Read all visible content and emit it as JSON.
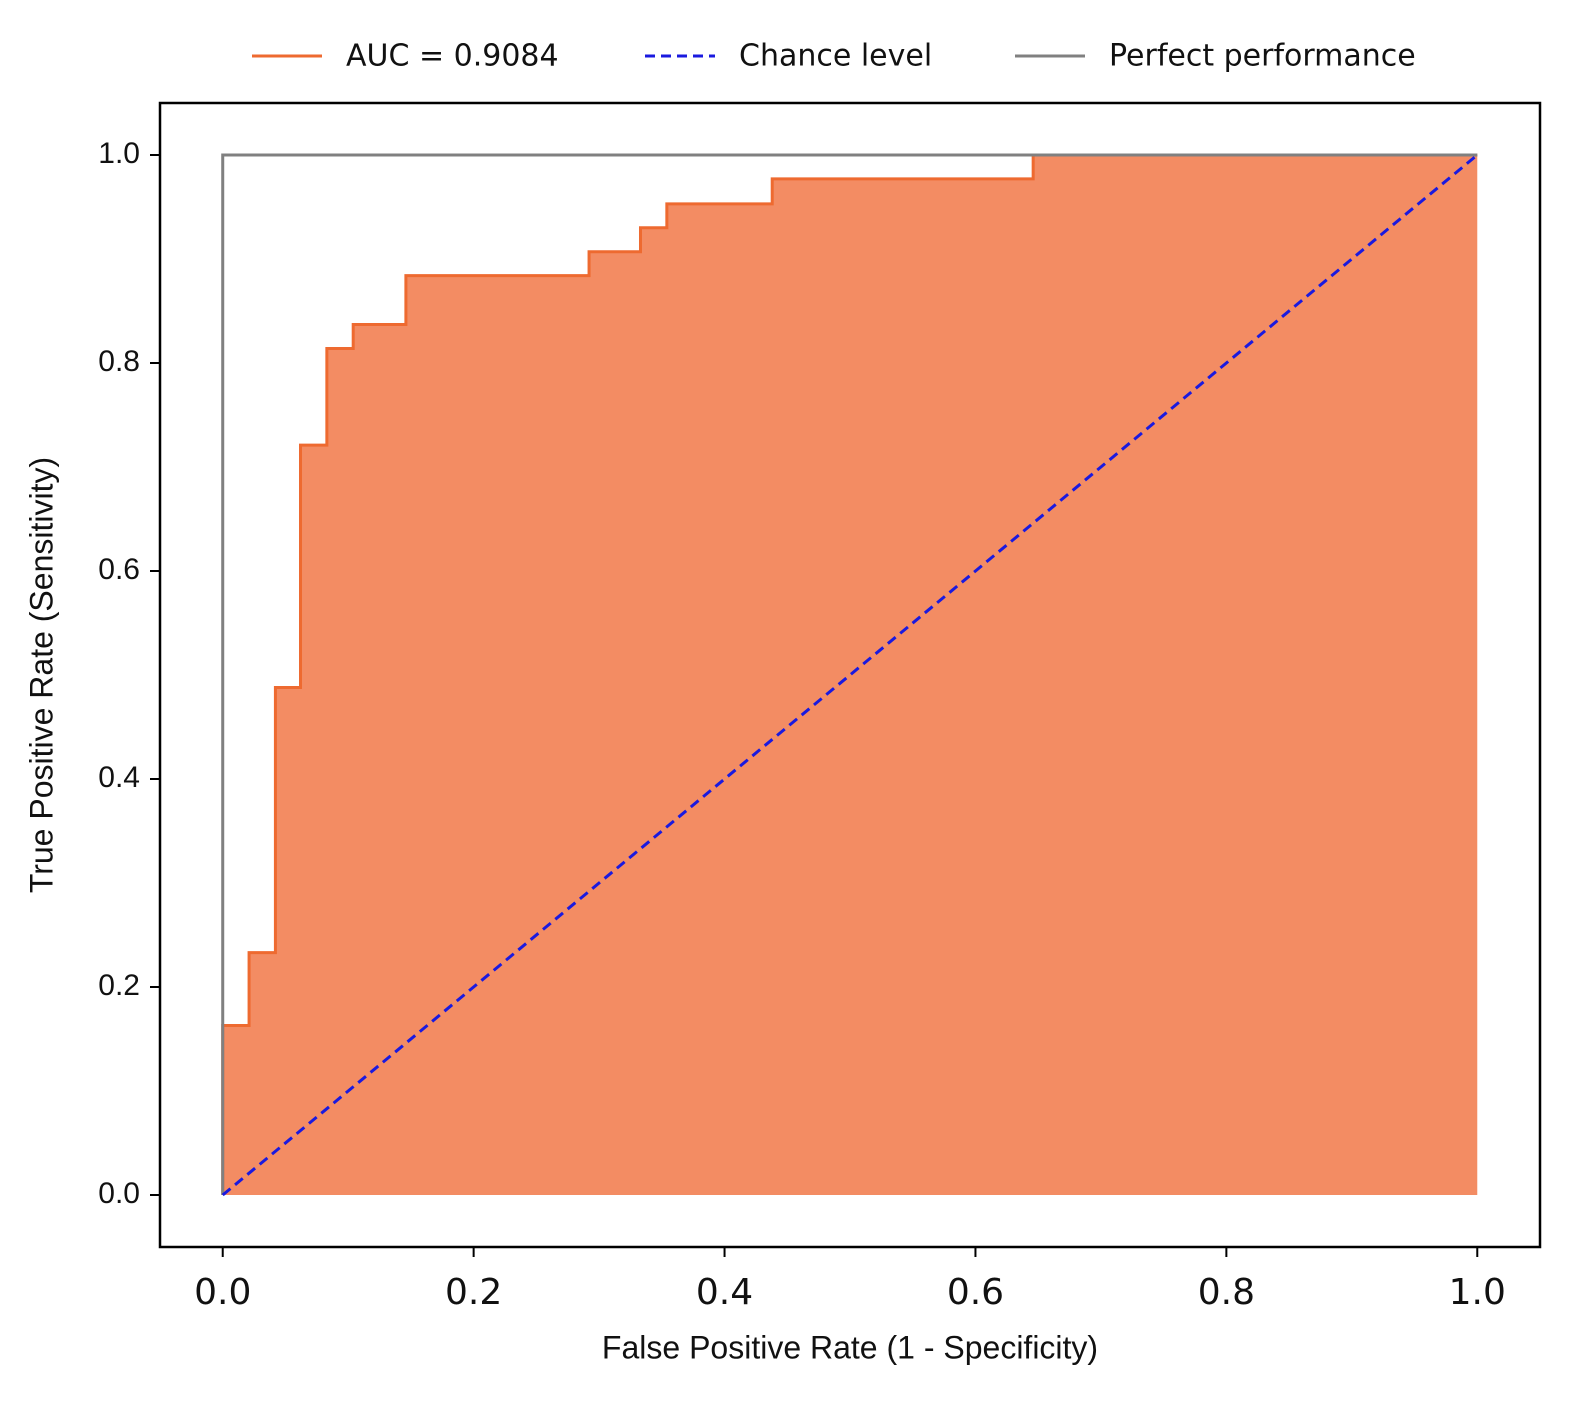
{
  "chart_data": {
    "type": "line",
    "xlabel": "False Positive Rate (1 - Specificity)",
    "ylabel": "True Positive Rate (Sensitivity)",
    "xlim": [
      -0.05,
      1.05
    ],
    "ylim": [
      -0.05,
      1.05
    ],
    "xticks": [
      {
        "value": 0,
        "label": "0.0"
      },
      0.2,
      0.4,
      0.6,
      0.8,
      {
        "value": 1,
        "label": "1.0"
      }
    ],
    "yticks": [
      {
        "value": 0,
        "label": "0.0"
      },
      0.2,
      0.4,
      0.6,
      0.8,
      {
        "value": 1,
        "label": "1.0"
      }
    ],
    "legend": "top",
    "series": [
      {
        "name": "AUC = 0.9084",
        "color": "#ee6a30",
        "fill": true,
        "fill_color": "#f38c63",
        "style": "solid",
        "x": [
          0,
          0,
          0.021,
          0.021,
          0.042,
          0.042,
          0.062,
          0.062,
          0.083,
          0.083,
          0.104,
          0.104,
          0.146,
          0.146,
          0.292,
          0.292,
          0.333,
          0.333,
          0.354,
          0.354,
          0.438,
          0.438,
          0.646,
          0.646,
          1
        ],
        "values": [
          0,
          0.163,
          0.163,
          0.233,
          0.233,
          0.488,
          0.488,
          0.721,
          0.721,
          0.814,
          0.814,
          0.837,
          0.837,
          0.884,
          0.884,
          0.907,
          0.907,
          0.93,
          0.93,
          0.953,
          0.953,
          0.977,
          0.977,
          1,
          1
        ]
      },
      {
        "name": "Chance level",
        "color": "#1a1adf",
        "style": "dashed",
        "x": [
          0,
          1
        ],
        "values": [
          0,
          1
        ]
      },
      {
        "name": "Perfect performance",
        "color": "#808080",
        "style": "solid",
        "x": [
          0,
          0,
          1
        ],
        "values": [
          0,
          1,
          1
        ]
      }
    ]
  }
}
